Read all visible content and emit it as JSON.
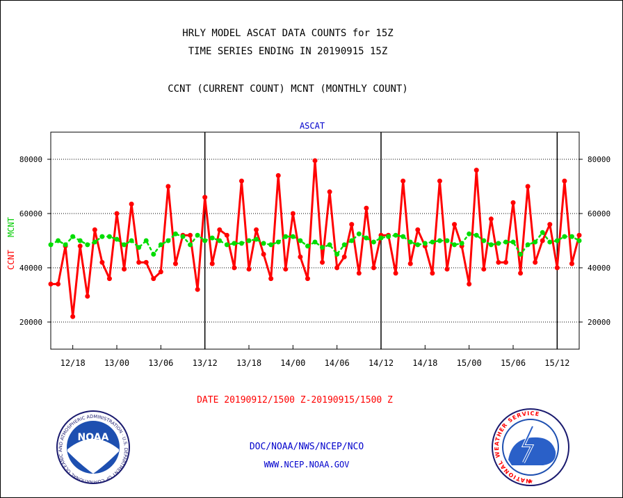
{
  "header": {
    "title_line1": "HRLY MODEL ASCAT DATA COUNTS for 15Z",
    "title_line2": "TIME SERIES ENDING IN 20190915 15Z",
    "legend_line": "CCNT (CURRENT COUNT) MCNT (MONTHLY COUNT)"
  },
  "footer": {
    "date_range": "DATE 20190912/1500 Z-20190915/1500 Z",
    "org_line": "DOC/NOAA/NWS/NCEP/NCO",
    "url_line": "WWW.NCEP.NOAA.GOV",
    "noaa_logo_text": "NOAA",
    "noaa_ring_text": "NATIONAL OCEANIC AND ATMOSPHERIC ADMINISTRATION · U.S. DEPARTMENT OF COMMERCE ·",
    "nws_ring_text": "NATIONAL WEATHER SERVICE"
  },
  "colors": {
    "ccnt": "#ff0000",
    "mcnt": "#00dd00",
    "subtitle": "#0000cc",
    "axis": "#000000"
  },
  "chart_data": {
    "type": "line",
    "title": "ASCAT",
    "ylabel_ccnt": "CCNT",
    "ylabel_mcnt": "MCNT",
    "ylim": [
      10000,
      90000
    ],
    "yticks": [
      20000,
      40000,
      60000,
      80000
    ],
    "ytick_labels": [
      "20000",
      "40000",
      "60000",
      "80000"
    ],
    "xtick_labels": [
      "12/18",
      "13/00",
      "13/06",
      "13/12",
      "13/18",
      "14/00",
      "14/06",
      "14/12",
      "14/18",
      "15/00",
      "15/06",
      "15/12"
    ],
    "grid": "horizontal dotted",
    "day_dividers": [
      "13/12",
      "14/12",
      "15/12"
    ],
    "x_start": "20190912/1500 Z",
    "x_end": "20190915/1500 Z",
    "series": [
      {
        "name": "CCNT",
        "values": [
          34000,
          34000,
          48000,
          22000,
          48000,
          29500,
          54000,
          42000,
          36000,
          60000,
          39500,
          63500,
          42000,
          42000,
          36000,
          38500,
          70000,
          41500,
          52000,
          52000,
          32000,
          66000,
          41500,
          54000,
          52000,
          40000,
          72000,
          39500,
          54000,
          45000,
          36000,
          74000,
          39500,
          60000,
          44000,
          36000,
          79500,
          42000,
          68000,
          40000,
          44000,
          56000,
          38000,
          62000,
          40000,
          52000,
          52000,
          38000,
          72000,
          41500,
          54000,
          48000,
          38000,
          72000,
          39500,
          56000,
          48000,
          34000,
          76000,
          39500,
          58000,
          42000,
          42000,
          64000,
          38000,
          70000,
          42000,
          50000,
          56000,
          40000,
          72000,
          41500,
          52000
        ]
      },
      {
        "name": "MCNT",
        "values": [
          48500,
          50000,
          48500,
          51500,
          50000,
          48500,
          49500,
          51500,
          51500,
          50500,
          48500,
          50000,
          47500,
          50000,
          45000,
          48500,
          50000,
          52500,
          51500,
          48500,
          52000,
          50000,
          51000,
          50000,
          48500,
          49000,
          49000,
          50000,
          50500,
          49000,
          48500,
          49500,
          51500,
          51500,
          50000,
          48000,
          49500,
          47500,
          48500,
          45000,
          48500,
          50000,
          52500,
          51000,
          49500,
          51000,
          51500,
          52000,
          51500,
          49500,
          48500,
          49000,
          49500,
          50000,
          50000,
          48500,
          49000,
          52500,
          52000,
          50000,
          48500,
          49000,
          49500,
          49500,
          45000,
          48500,
          49500,
          53000,
          49500,
          50000,
          51500,
          51500,
          50000
        ]
      }
    ]
  }
}
